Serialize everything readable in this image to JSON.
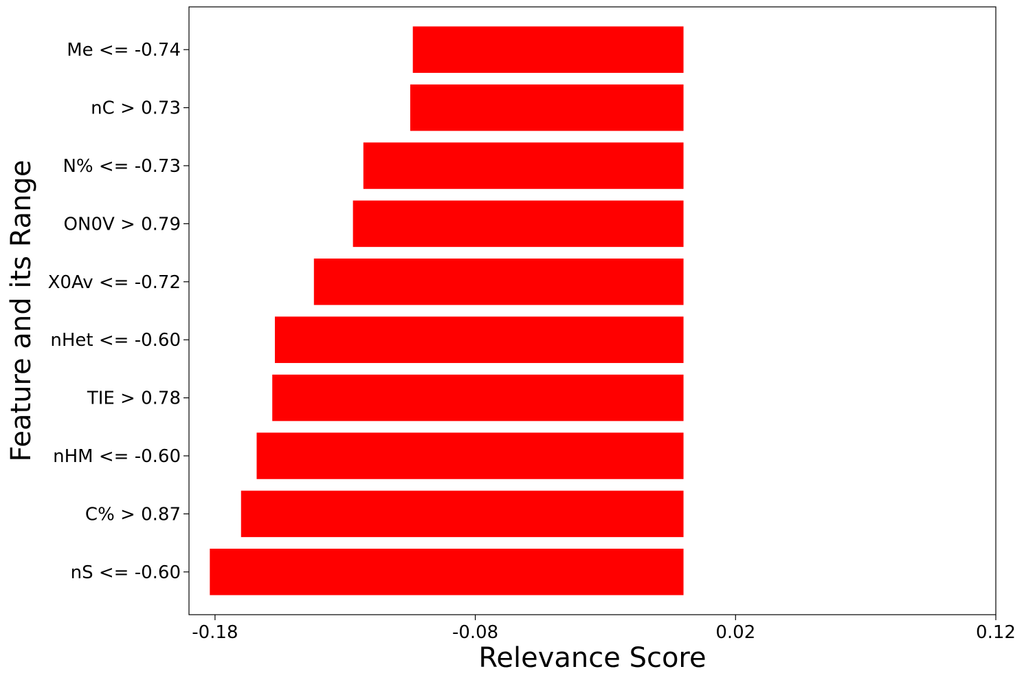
{
  "chart_data": {
    "type": "bar",
    "orientation": "horizontal",
    "title": "",
    "xlabel": "Relevance Score",
    "ylabel": "Feature and its Range",
    "xlim": [
      -0.19,
      0.12
    ],
    "xticks": [
      -0.18,
      -0.08,
      0.02,
      0.12
    ],
    "xtick_labels": [
      "-0.18",
      "-0.08",
      "0.02",
      "0.12"
    ],
    "categories": [
      "Me <= -0.74",
      "nC > 0.73",
      "N% <= -0.73",
      "ON0V > 0.79",
      "X0Av <= -0.72",
      "nHet <= -0.60",
      "TIE > 0.78",
      "nHM <= -0.60",
      "C% > 0.87",
      "nS <= -0.60"
    ],
    "values": [
      -0.104,
      -0.105,
      -0.123,
      -0.127,
      -0.142,
      -0.157,
      -0.158,
      -0.164,
      -0.17,
      -0.182
    ],
    "bar_base": 0.0,
    "bar_color": "#ff0000",
    "grid": false,
    "legend": "none"
  }
}
